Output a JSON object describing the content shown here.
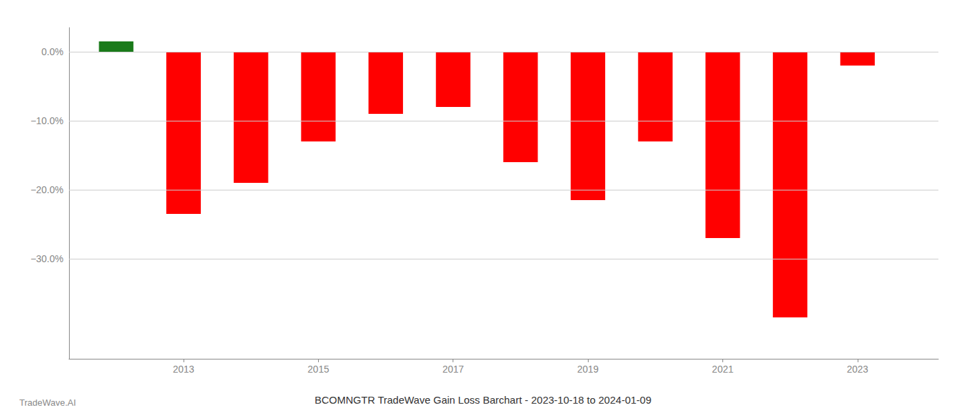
{
  "chart_data": {
    "type": "bar",
    "title": "BCOMNGTR TradeWave Gain Loss Barchart - 2023-10-18 to 2024-01-09",
    "annotations": [
      "TradeWave.AI"
    ],
    "x": [
      2012,
      2013,
      2014,
      2015,
      2016,
      2017,
      2018,
      2019,
      2020,
      2021,
      2022,
      2023
    ],
    "values": [
      0.015,
      -0.235,
      -0.19,
      -0.13,
      -0.09,
      -0.08,
      -0.16,
      -0.215,
      -0.13,
      -0.27,
      -0.385,
      -0.02
    ],
    "colors": [
      "#1a7a1a",
      "#ff0000",
      "#ff0000",
      "#ff0000",
      "#ff0000",
      "#ff0000",
      "#ff0000",
      "#ff0000",
      "#ff0000",
      "#ff0000",
      "#ff0000",
      "#ff0000"
    ],
    "xlim": [
      2011.3,
      2024.2
    ],
    "xticks": [
      2013,
      2015,
      2017,
      2019,
      2021,
      2023
    ],
    "ylim": [
      -0.445,
      0.035
    ],
    "yticks": [
      {
        "value": 0.0,
        "label": "0.0%"
      },
      {
        "value": -0.1,
        "label": "−10.0%"
      },
      {
        "value": -0.2,
        "label": "−20.0%"
      },
      {
        "value": -0.3,
        "label": "−30.0%"
      }
    ],
    "grid": true
  }
}
